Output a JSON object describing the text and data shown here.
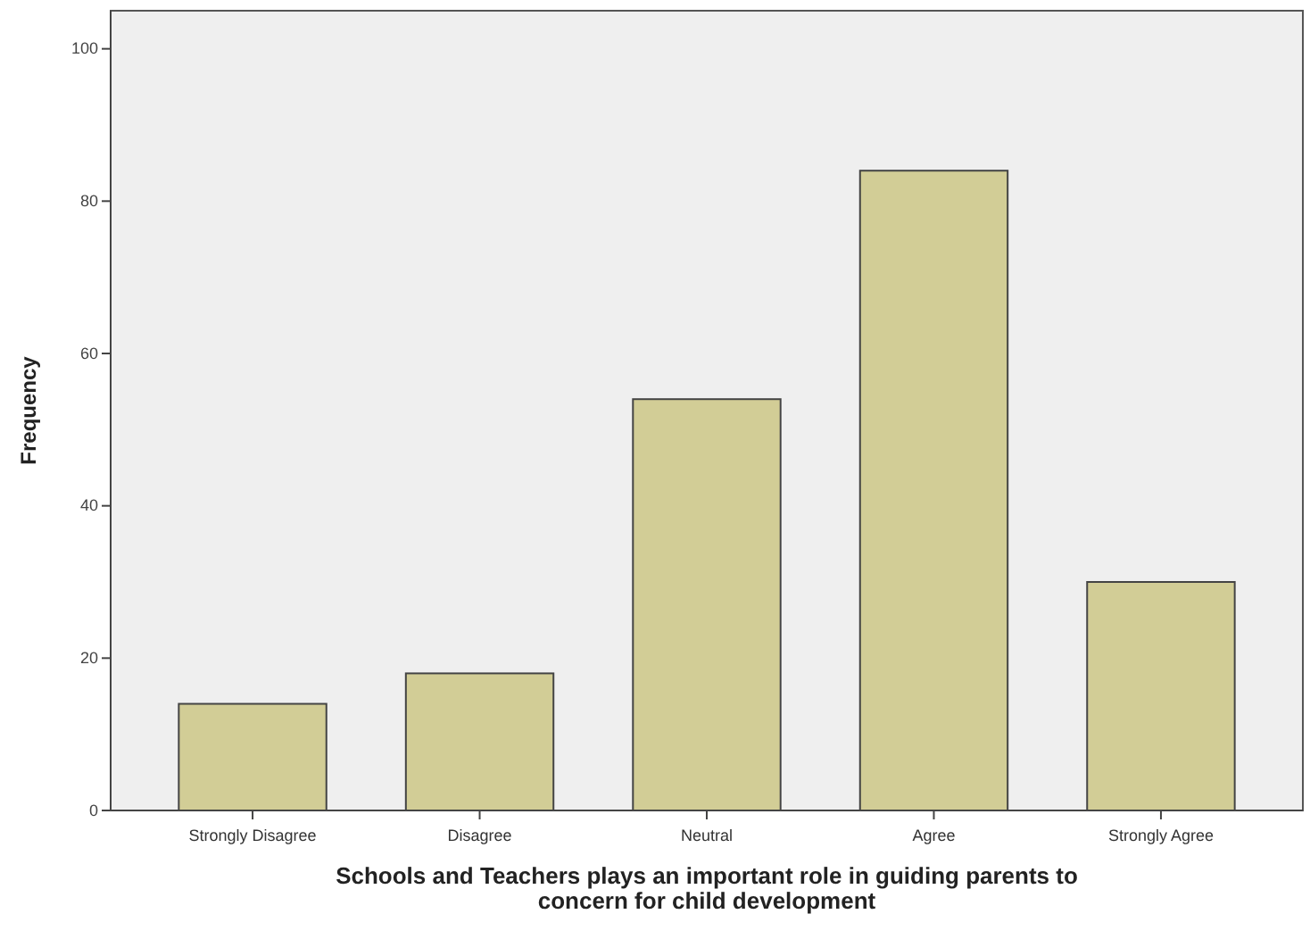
{
  "chart_data": {
    "type": "bar",
    "xlabel": "Schools and Teachers plays an important role in guiding parents to concern for child development",
    "ylabel": "Frequency",
    "categories": [
      "Strongly Disagree",
      "Disagree",
      "Neutral",
      "Agree",
      "Strongly Agree"
    ],
    "values": [
      14,
      18,
      54,
      84,
      30
    ],
    "color": "#d2cd96",
    "ylim": [
      0,
      105
    ],
    "yticks": [
      0,
      20,
      40,
      60,
      80,
      100
    ],
    "grid": false
  }
}
